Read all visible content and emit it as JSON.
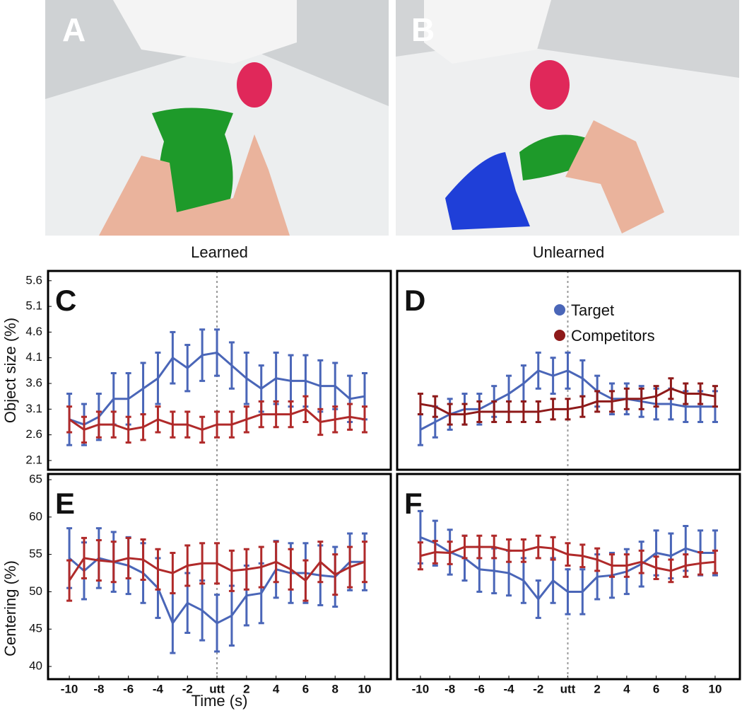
{
  "photos": [
    {
      "label": "A"
    },
    {
      "label": "B"
    }
  ],
  "chart_data": [
    {
      "type": "line",
      "panel": "C",
      "title": "Learned",
      "y_label": "Object size (%)",
      "x": [
        -10,
        -9,
        -8,
        -7,
        -6,
        -5,
        -4,
        -3,
        -2,
        -1,
        0,
        1,
        2,
        3,
        4,
        5,
        6,
        7,
        8,
        9,
        10
      ],
      "xlim": [
        -11.44,
        11.77
      ],
      "ylim": [
        1.92,
        5.79
      ],
      "yticks": [
        2.1,
        2.6,
        3.1,
        3.6,
        4.1,
        4.6,
        5.1,
        5.6
      ],
      "vline": 0,
      "series": [
        {
          "color": "#4a66b8",
          "values": [
            2.9,
            2.8,
            2.95,
            3.3,
            3.3,
            3.5,
            3.7,
            4.1,
            3.9,
            4.15,
            4.2,
            3.95,
            3.7,
            3.5,
            3.7,
            3.65,
            3.65,
            3.55,
            3.55,
            3.3,
            3.35
          ],
          "errors": [
            0.5,
            0.4,
            0.45,
            0.5,
            0.5,
            0.5,
            0.5,
            0.5,
            0.45,
            0.5,
            0.45,
            0.45,
            0.5,
            0.45,
            0.5,
            0.5,
            0.5,
            0.5,
            0.45,
            0.45,
            0.45
          ]
        },
        {
          "color": "#b02a2a",
          "values": [
            2.9,
            2.7,
            2.8,
            2.8,
            2.7,
            2.75,
            2.9,
            2.8,
            2.8,
            2.7,
            2.8,
            2.8,
            2.9,
            3.0,
            3.0,
            3.0,
            3.1,
            2.85,
            2.9,
            2.95,
            2.9
          ],
          "errors": [
            0.25,
            0.25,
            0.25,
            0.25,
            0.25,
            0.25,
            0.25,
            0.25,
            0.25,
            0.25,
            0.25,
            0.25,
            0.25,
            0.25,
            0.25,
            0.25,
            0.25,
            0.25,
            0.25,
            0.25,
            0.25
          ]
        }
      ]
    },
    {
      "type": "line",
      "panel": "D",
      "title": "Unlearned",
      "x": [
        -10,
        -9,
        -8,
        -7,
        -6,
        -5,
        -4,
        -3,
        -2,
        -1,
        0,
        1,
        2,
        3,
        4,
        5,
        6,
        7,
        8,
        9,
        10
      ],
      "xlim": [
        -11.58,
        11.68
      ],
      "ylim": [
        1.92,
        5.79
      ],
      "vline": 0,
      "legend": "upper-right",
      "series": [
        {
          "name": "Target",
          "color": "#4a66b8",
          "values": [
            2.7,
            2.85,
            3.0,
            3.1,
            3.1,
            3.25,
            3.4,
            3.6,
            3.85,
            3.75,
            3.85,
            3.7,
            3.45,
            3.3,
            3.3,
            3.25,
            3.2,
            3.2,
            3.15,
            3.15,
            3.15
          ],
          "errors": [
            0.3,
            0.3,
            0.3,
            0.3,
            0.3,
            0.3,
            0.35,
            0.35,
            0.35,
            0.35,
            0.35,
            0.35,
            0.3,
            0.3,
            0.3,
            0.3,
            0.3,
            0.3,
            0.3,
            0.3,
            0.3
          ]
        },
        {
          "name": "Competitors",
          "color": "#8e1a1a",
          "values": [
            3.2,
            3.15,
            3.0,
            3.0,
            3.05,
            3.05,
            3.05,
            3.05,
            3.05,
            3.1,
            3.1,
            3.15,
            3.25,
            3.25,
            3.3,
            3.3,
            3.35,
            3.5,
            3.4,
            3.4,
            3.35
          ],
          "errors": [
            0.2,
            0.2,
            0.2,
            0.2,
            0.2,
            0.2,
            0.2,
            0.2,
            0.2,
            0.2,
            0.2,
            0.2,
            0.2,
            0.2,
            0.2,
            0.2,
            0.2,
            0.2,
            0.2,
            0.2,
            0.2
          ]
        }
      ]
    },
    {
      "type": "line",
      "panel": "E",
      "y_label": "Centering (%)",
      "x_label": "Time (s)",
      "x": [
        -10,
        -9,
        -8,
        -7,
        -6,
        -5,
        -4,
        -3,
        -2,
        -1,
        0,
        1,
        2,
        3,
        4,
        5,
        6,
        7,
        8,
        9,
        10
      ],
      "xlim": [
        -11.44,
        11.77
      ],
      "ylim": [
        38.3,
        65.76
      ],
      "yticks": [
        40,
        45,
        50,
        55,
        60,
        65
      ],
      "vline": 0,
      "xticks": [
        -10,
        -8,
        -6,
        -4,
        -2,
        {
          "value": 0,
          "label": "utt"
        },
        2,
        4,
        6,
        8,
        10
      ],
      "series": [
        {
          "color": "#4a66b8",
          "values": [
            54.5,
            52.8,
            54.5,
            54,
            53.5,
            52.5,
            50.5,
            45.8,
            48.5,
            47.5,
            45.8,
            46.8,
            49.5,
            49.8,
            53,
            52.5,
            52.5,
            52.2,
            52,
            54,
            54
          ],
          "errors": [
            4,
            3.8,
            4,
            4,
            3.8,
            4,
            4,
            4,
            4,
            4,
            3.8,
            4,
            4,
            4,
            3.8,
            4,
            4,
            4,
            4,
            3.8,
            3.8
          ]
        },
        {
          "color": "#b02a2a",
          "values": [
            51.5,
            54.5,
            54.2,
            54,
            54.5,
            54.3,
            53,
            52.5,
            53.5,
            53.8,
            53.8,
            52.8,
            53,
            53.3,
            54,
            53,
            51.5,
            54,
            52.3,
            53.3,
            54
          ],
          "errors": [
            2.7,
            2.7,
            2.7,
            2.7,
            2.7,
            2.7,
            2.7,
            2.7,
            2.7,
            2.7,
            2.7,
            2.7,
            2.7,
            2.7,
            2.7,
            2.7,
            2.7,
            2.7,
            2.7,
            2.7,
            2.7
          ]
        }
      ]
    },
    {
      "type": "line",
      "panel": "F",
      "x": [
        -10,
        -9,
        -8,
        -7,
        -6,
        -5,
        -4,
        -3,
        -2,
        -1,
        0,
        1,
        2,
        3,
        4,
        5,
        6,
        7,
        8,
        9,
        10
      ],
      "xlim": [
        -11.58,
        11.68
      ],
      "ylim": [
        38.3,
        65.76
      ],
      "vline": 0,
      "xticks": [
        -10,
        -8,
        -6,
        -4,
        -2,
        {
          "value": 0,
          "label": "utt"
        },
        2,
        4,
        6,
        8,
        10
      ],
      "series": [
        {
          "color": "#4a66b8",
          "values": [
            57.3,
            56.5,
            55.3,
            54.5,
            53,
            52.8,
            52.5,
            51.5,
            49,
            51.5,
            50,
            50,
            52,
            52.2,
            52.7,
            53.7,
            55.2,
            54.8,
            55.8,
            55.2,
            55.2
          ],
          "errors": [
            3.5,
            3,
            3,
            3,
            3,
            3,
            3,
            3,
            2.5,
            3,
            3,
            3,
            3,
            3,
            3,
            3,
            3,
            3,
            3,
            3,
            3
          ]
        },
        {
          "color": "#b02a2a",
          "values": [
            54.8,
            55.3,
            55.2,
            56,
            56,
            56,
            55.5,
            55.5,
            56,
            55.8,
            55,
            54.8,
            54.3,
            53.5,
            53.5,
            54,
            53.2,
            52.8,
            53.5,
            53.8,
            54
          ],
          "errors": [
            1.8,
            1.5,
            1.5,
            1.5,
            1.5,
            1.5,
            1.5,
            1.5,
            1.5,
            1.5,
            1.5,
            1.5,
            1.5,
            1.5,
            1.5,
            1.5,
            1.5,
            1.5,
            1.5,
            1.5,
            1.5
          ]
        }
      ]
    }
  ]
}
